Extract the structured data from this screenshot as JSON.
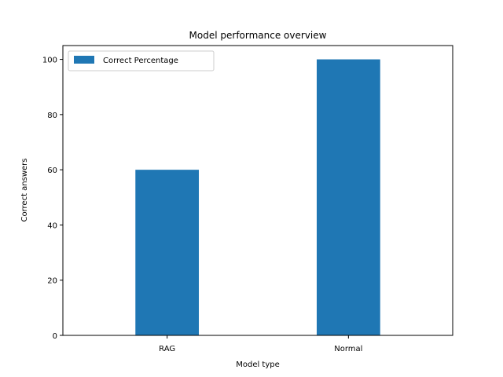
{
  "chart_data": {
    "type": "bar",
    "title": "Model performance overview",
    "xlabel": "Model type",
    "ylabel": "Correct answers",
    "categories": [
      "RAG",
      "Normal"
    ],
    "series": [
      {
        "name": "Correct Percentage",
        "values": [
          60,
          100
        ],
        "color": "#1f77b4"
      }
    ],
    "ylim": [
      0,
      105
    ],
    "yticks": [
      0,
      20,
      40,
      60,
      80,
      100
    ],
    "legend": "upper-left",
    "grid": false
  }
}
